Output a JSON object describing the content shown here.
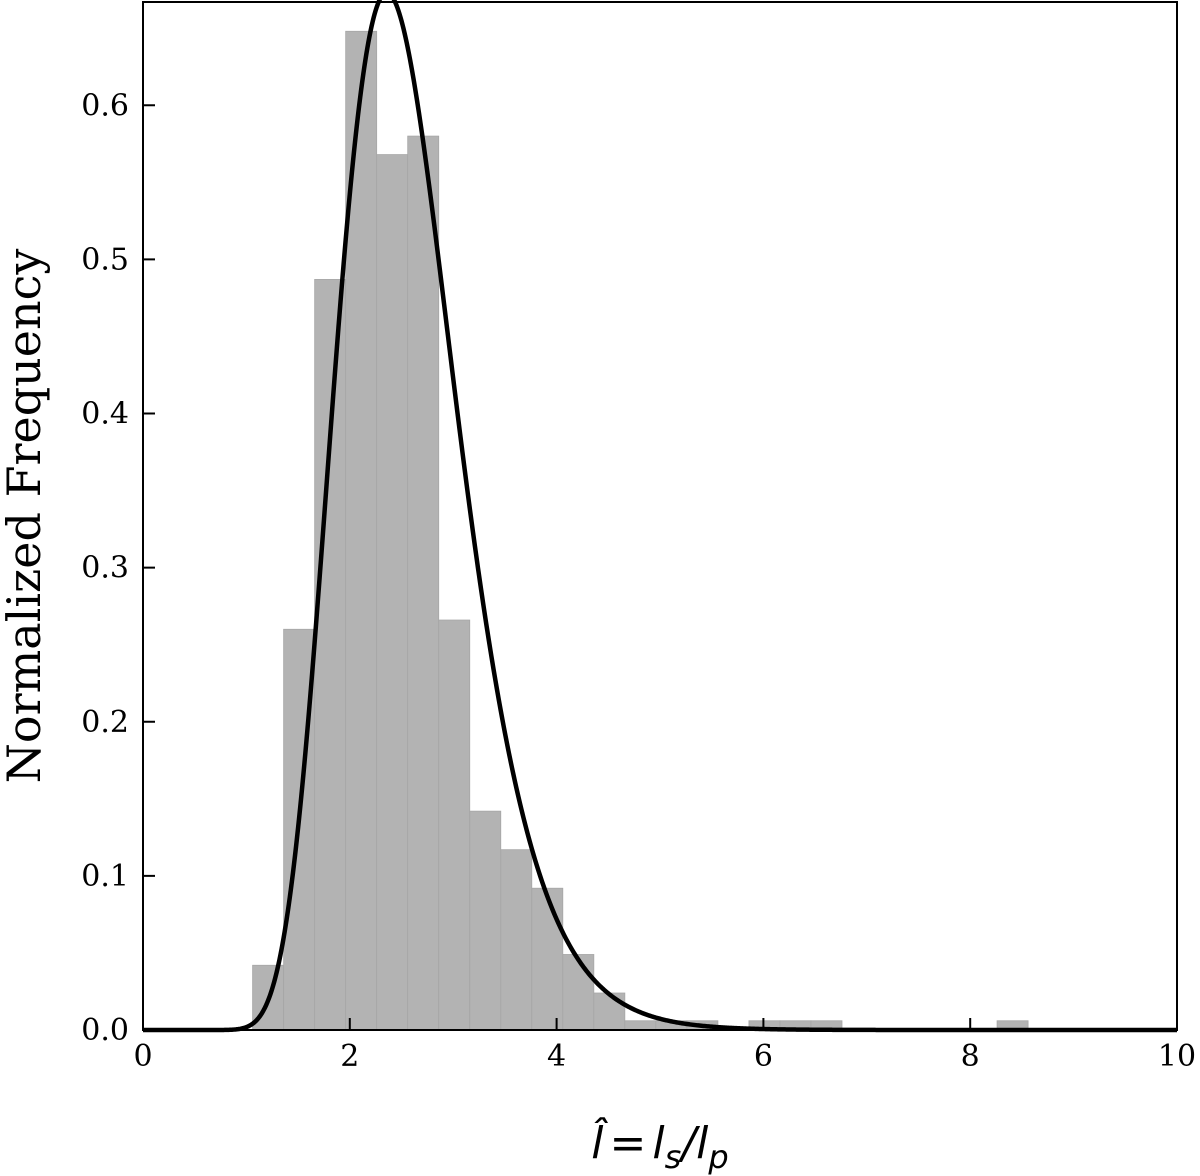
{
  "chart_data": {
    "type": "bar",
    "title": "",
    "xlabel": "Îl = l",
    "xlabel_parts": {
      "lhs": "l̂",
      "eq": "=",
      "num": "l",
      "num_sub": "s",
      "slash": "/",
      "den": "l",
      "den_sub": "p"
    },
    "ylabel": "Normalized Frequency",
    "xlim": [
      0,
      10
    ],
    "ylim": [
      0,
      0.667
    ],
    "xticks": [
      0,
      2,
      4,
      6,
      8,
      10
    ],
    "xtick_labels": [
      "0",
      "2",
      "4",
      "6",
      "8",
      "10"
    ],
    "yticks": [
      0.0,
      0.1,
      0.2,
      0.3,
      0.4,
      0.5,
      0.6
    ],
    "ytick_labels": [
      "0.0",
      "0.1",
      "0.2",
      "0.3",
      "0.4",
      "0.5",
      "0.6"
    ],
    "bar_color": "#b3b3b3",
    "curve_color": "#000000",
    "bin_width": 0.3,
    "bins": [
      {
        "x0": 1.06,
        "value": 0.042
      },
      {
        "x0": 1.36,
        "value": 0.26
      },
      {
        "x0": 1.66,
        "value": 0.487
      },
      {
        "x0": 1.96,
        "value": 0.648
      },
      {
        "x0": 2.26,
        "value": 0.568
      },
      {
        "x0": 2.56,
        "value": 0.58
      },
      {
        "x0": 2.86,
        "value": 0.266
      },
      {
        "x0": 3.16,
        "value": 0.142
      },
      {
        "x0": 3.46,
        "value": 0.117
      },
      {
        "x0": 3.76,
        "value": 0.092
      },
      {
        "x0": 4.06,
        "value": 0.049
      },
      {
        "x0": 4.36,
        "value": 0.024
      },
      {
        "x0": 4.66,
        "value": 0.006
      },
      {
        "x0": 4.96,
        "value": 0.006
      },
      {
        "x0": 5.26,
        "value": 0.006
      },
      {
        "x0": 5.86,
        "value": 0.006
      },
      {
        "x0": 6.16,
        "value": 0.006
      },
      {
        "x0": 6.46,
        "value": 0.006
      },
      {
        "x0": 8.26,
        "value": 0.006
      }
    ],
    "fit_curve": {
      "type": "lognormal",
      "mode": 2.22,
      "peak": 0.654,
      "mu": 0.92,
      "sigma": 0.25
    }
  }
}
